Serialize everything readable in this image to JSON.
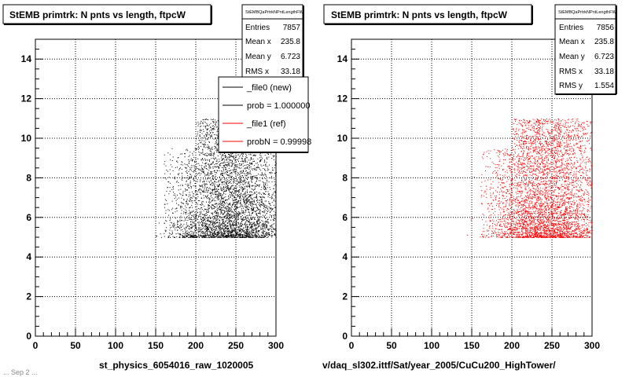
{
  "footer_text": "... Sep 2 ...",
  "chart_data": [
    {
      "type": "scatter",
      "title": "StEMB primtrk: N pnts vs length, ftpcW",
      "xlabel": "st_physics_6054016_raw_1020005",
      "ylabel": "",
      "xlim": [
        0,
        300
      ],
      "ylim": [
        0,
        15
      ],
      "xticks": [
        0,
        50,
        100,
        150,
        200,
        250,
        300
      ],
      "yticks": [
        0,
        2,
        4,
        6,
        8,
        10,
        12,
        14
      ],
      "grid": true,
      "marker_color": "#000000",
      "stats": {
        "header": "StEMBQaPrtrkNPntLengthFW",
        "rows": [
          {
            "label": "Entries",
            "value": "7857"
          },
          {
            "label": "Mean x",
            "value": "235.8"
          },
          {
            "label": "Mean y",
            "value": "6.723"
          },
          {
            "label": "RMS x",
            "value": "33.18"
          }
        ]
      },
      "legend": {
        "placement": "top-right",
        "entries": [
          {
            "label": "_file0 (new)",
            "color": "#000000"
          },
          {
            "label": "prob = 1.000000",
            "color": "#000000"
          },
          {
            "label": "_file1 (ref)",
            "color": "#ff0000"
          },
          {
            "label": "probN = 0.99998",
            "color": "#ff0000"
          }
        ]
      },
      "distribution": {
        "points": 7857,
        "x_range": [
          110,
          300
        ],
        "y_range": [
          5,
          11
        ],
        "mean_x": 235.8,
        "mean_y": 6.723,
        "rms_x": 33.18
      }
    },
    {
      "type": "scatter",
      "title": "StEMB primtrk: N pnts vs length, ftpcW",
      "xlabel": "v/daq_sl302.ittf/Sat/year_2005/CuCu200_HighTower/",
      "ylabel": "",
      "xlim": [
        0,
        300
      ],
      "ylim": [
        0,
        15
      ],
      "xticks": [
        0,
        50,
        100,
        150,
        200,
        250,
        300
      ],
      "yticks": [
        0,
        2,
        4,
        6,
        8,
        10,
        12,
        14
      ],
      "grid": true,
      "marker_color": "#ff0000",
      "stats": {
        "header": "StEMBQaPrtrkNPntLengthFW",
        "rows": [
          {
            "label": "Entries",
            "value": "7856"
          },
          {
            "label": "Mean x",
            "value": "235.8"
          },
          {
            "label": "Mean y",
            "value": "6.723"
          },
          {
            "label": "RMS x",
            "value": "33.18"
          },
          {
            "label": "RMS y",
            "value": "1.554"
          }
        ]
      },
      "distribution": {
        "points": 7856,
        "x_range": [
          110,
          300
        ],
        "y_range": [
          5,
          11
        ],
        "mean_x": 235.8,
        "mean_y": 6.723,
        "rms_x": 33.18,
        "rms_y": 1.554
      }
    }
  ]
}
